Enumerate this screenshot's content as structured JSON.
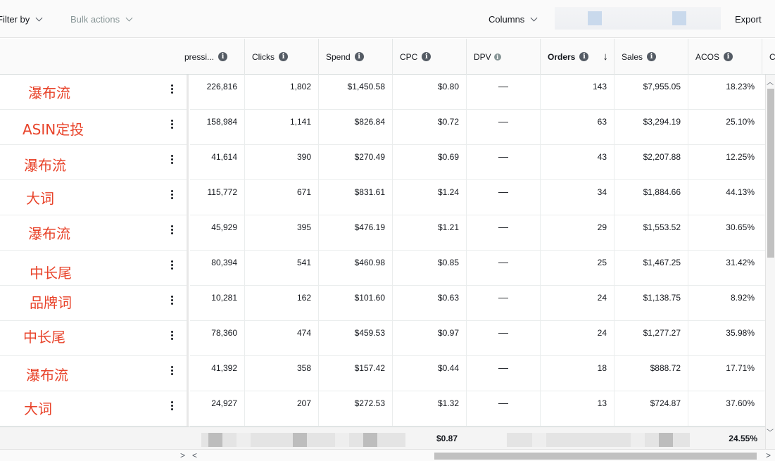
{
  "toolbar": {
    "filter_label": "Filter by",
    "bulk_label": "Bulk actions",
    "columns_label": "Columns",
    "export_label": "Export"
  },
  "headers": [
    {
      "label": "pressi...",
      "info": true
    },
    {
      "label": "Clicks",
      "info": true
    },
    {
      "label": "Spend",
      "info": true
    },
    {
      "label": "CPC",
      "info": true
    },
    {
      "label": "DPV",
      "info": true
    },
    {
      "label": "Orders",
      "info": true,
      "sorted": "desc"
    },
    {
      "label": "Sales",
      "info": true
    },
    {
      "label": "ACOS",
      "info": true
    },
    {
      "label": "Cl",
      "info": false
    }
  ],
  "sort_icon": "arrow-down-icon",
  "info_icon": "info-icon",
  "rows": [
    {
      "name": "瀑布流",
      "impressions": "226,816",
      "clicks": "1,802",
      "spend": "$1,450.58",
      "cpc": "$0.80",
      "dpv": "—",
      "orders": "143",
      "sales": "$7,955.05",
      "acos": "18.23%"
    },
    {
      "name": "ASIN定投",
      "impressions": "158,984",
      "clicks": "1,141",
      "spend": "$826.84",
      "cpc": "$0.72",
      "dpv": "—",
      "orders": "63",
      "sales": "$3,294.19",
      "acos": "25.10%"
    },
    {
      "name": "瀑布流",
      "impressions": "41,614",
      "clicks": "390",
      "spend": "$270.49",
      "cpc": "$0.69",
      "dpv": "—",
      "orders": "43",
      "sales": "$2,207.88",
      "acos": "12.25%"
    },
    {
      "name": "大词",
      "impressions": "115,772",
      "clicks": "671",
      "spend": "$831.61",
      "cpc": "$1.24",
      "dpv": "—",
      "orders": "34",
      "sales": "$1,884.66",
      "acos": "44.13%"
    },
    {
      "name": "瀑布流",
      "impressions": "45,929",
      "clicks": "395",
      "spend": "$476.19",
      "cpc": "$1.21",
      "dpv": "—",
      "orders": "29",
      "sales": "$1,553.52",
      "acos": "30.65%"
    },
    {
      "name": "中长尾",
      "impressions": "80,394",
      "clicks": "541",
      "spend": "$460.98",
      "cpc": "$0.85",
      "dpv": "—",
      "orders": "25",
      "sales": "$1,467.25",
      "acos": "31.42%"
    },
    {
      "name": "品牌词",
      "impressions": "10,281",
      "clicks": "162",
      "spend": "$101.60",
      "cpc": "$0.63",
      "dpv": "—",
      "orders": "24",
      "sales": "$1,138.75",
      "acos": "8.92%"
    },
    {
      "name": "中长尾",
      "impressions": "78,360",
      "clicks": "474",
      "spend": "$459.53",
      "cpc": "$0.97",
      "dpv": "—",
      "orders": "24",
      "sales": "$1,277.27",
      "acos": "35.98%"
    },
    {
      "name": "瀑布流",
      "impressions": "41,392",
      "clicks": "358",
      "spend": "$157.42",
      "cpc": "$0.44",
      "dpv": "—",
      "orders": "18",
      "sales": "$888.72",
      "acos": "17.71%"
    },
    {
      "name": "大词",
      "impressions": "24,927",
      "clicks": "207",
      "spend": "$272.53",
      "cpc": "$1.32",
      "dpv": "—",
      "orders": "13",
      "sales": "$724.87",
      "acos": "37.60%"
    }
  ],
  "totals": {
    "cpc": "$0.87",
    "acos": "24.55%"
  },
  "colors": {
    "name_red": "#e8432a",
    "accent_blue": "#c9d9ec"
  }
}
